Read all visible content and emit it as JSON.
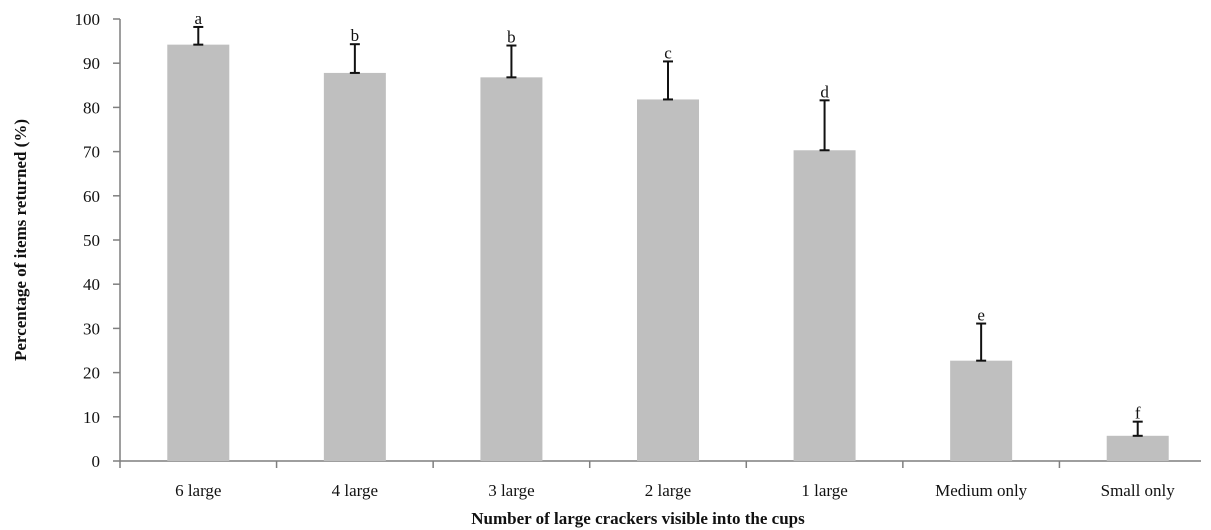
{
  "chart_data": {
    "type": "bar",
    "title": "",
    "xlabel": "Number of large crackers visible into the cups",
    "ylabel": "Percentage of items returned (%)",
    "ylim": [
      0,
      100
    ],
    "yticks": [
      0,
      10,
      20,
      30,
      40,
      50,
      60,
      70,
      80,
      90,
      100
    ],
    "categories": [
      "6 large",
      "4 large",
      "3 large",
      "2 large",
      "1 large",
      "Medium only",
      "Small only"
    ],
    "values": [
      94.2,
      87.8,
      86.8,
      81.8,
      70.3,
      22.7,
      5.7
    ],
    "error_upper": [
      4.0,
      6.5,
      7.2,
      8.6,
      11.3,
      8.4,
      3.2
    ],
    "significance_letters": [
      "a",
      "b",
      "b",
      "c",
      "d",
      "e",
      "f"
    ],
    "grid": false,
    "legend": "none",
    "colors": {
      "bar": "#bfbfbf",
      "axis": "#7f7f7f",
      "error": "#111111"
    }
  }
}
